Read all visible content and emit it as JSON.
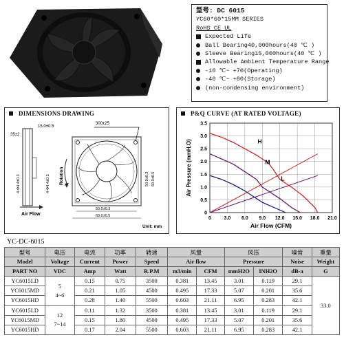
{
  "spec": {
    "model_line": "型号: DC 6015",
    "size_line": "YC60*60*15MM SERIES",
    "cert_line": "RoHS  CE  UL",
    "life_heading": "Expected Life",
    "life_ball": "Ball Bearing40,000hours(40 ℃ )",
    "life_sleeve": "Sleeve Bearing15,000hours(40 ℃ )",
    "temp_heading": "Allowable Ambient Temperature Range",
    "temp_operating": "-10 ℃~ +70(Operating)",
    "temp_storage": "-40 ℃~ +80(Storage)",
    "temp_note": "(non-condensing environment)"
  },
  "dimensions": {
    "title": "DIMENSIONS DRAWING",
    "dim_side": "35±2",
    "dim_thick": "15.0±0.5",
    "dim_hole_v": "4-Φ4.4±0.3",
    "dim_hole_v2": "4-Φ4.4±0.3",
    "dim_lead": "300±25",
    "dim_inner": "50.0±0.3",
    "dim_outer": "60.0±0.5",
    "label_rotation": "Rotation",
    "label_airflow": "Air Flow",
    "label_unit": "Unit: mm"
  },
  "pq": {
    "title": "P&Q CURVE (AT RATED VOLTAGE)"
  },
  "chart_data": {
    "type": "line",
    "title": "P&Q CURVE (AT RATED VOLTAGE)",
    "xlabel": "Air Flow (CFM)",
    "ylabel": "Air Pressure (mmH.O)",
    "xlim": [
      0,
      21
    ],
    "ylim": [
      0,
      3.5
    ],
    "xticks": [
      "0",
      "3.0",
      "6.0",
      "9.0",
      "12.0",
      "15.0",
      "18.0",
      "21.0"
    ],
    "yticks": [
      "0",
      "0.5",
      "1.0",
      "1.5",
      "2.0",
      "2.5",
      "3.0",
      "3.5"
    ],
    "grid": true,
    "series": [
      {
        "name": "H",
        "color": "#c62828",
        "x": [
          0,
          2,
          4,
          6,
          8,
          9,
          10,
          11,
          12,
          13,
          14,
          16,
          18,
          18.5
        ],
        "y": [
          3.1,
          2.95,
          2.75,
          2.5,
          2.25,
          2.1,
          1.95,
          1.65,
          1.3,
          1.15,
          1.0,
          0.65,
          0.2,
          0
        ]
      },
      {
        "name": "M",
        "color": "#6a1b6a",
        "x": [
          0,
          2,
          4,
          6,
          8,
          9,
          10,
          12,
          14,
          15.5
        ],
        "y": [
          2.3,
          2.1,
          1.9,
          1.6,
          1.3,
          1.0,
          0.85,
          0.55,
          0.2,
          0
        ]
      },
      {
        "name": "L",
        "color": "#1a237e",
        "x": [
          0,
          2,
          4,
          6,
          7,
          8,
          9,
          10,
          11,
          12,
          13
        ],
        "y": [
          1.45,
          1.3,
          1.1,
          0.85,
          0.7,
          0.55,
          0.4,
          0.3,
          0.2,
          0.1,
          0
        ]
      }
    ],
    "impedance_lines": [
      {
        "color": "#c62828",
        "x": [
          0,
          18.5
        ],
        "y": [
          0,
          2.3
        ]
      },
      {
        "color": "#6a1b6a",
        "x": [
          0,
          18.5
        ],
        "y": [
          0,
          1.45
        ]
      }
    ]
  },
  "table": {
    "label": "YC-DC-6015",
    "header_cn": [
      "型号",
      "电压",
      "电流",
      "功率",
      "转速",
      "风量",
      "风压",
      "噪音",
      "重量"
    ],
    "header_en": [
      "Model",
      "Voltage",
      "Current",
      "Power",
      "Speed",
      "Air flow",
      "Pressure",
      "Noise",
      "Weight"
    ],
    "units": [
      "PART NO",
      "VDC",
      "Amp",
      "Watt",
      "R.P.M",
      "m3/min",
      "CFM",
      "mmH2O",
      "INH2O",
      "dB-a",
      "G"
    ],
    "rows": [
      [
        "YC6015LD",
        "0.15",
        "0.75",
        "3500",
        "0.381",
        "13.45",
        "3.01",
        "0.119",
        "29.1"
      ],
      [
        "YC6015MD",
        "0.21",
        "1.05",
        "4500",
        "0.495",
        "17.33",
        "5.07",
        "0.201",
        "35.6"
      ],
      [
        "YC6015HD",
        "0.28",
        "1.40",
        "5500",
        "0.603",
        "21.11",
        "6.95",
        "0.283",
        "42.1"
      ],
      [
        "YC6015LD",
        "0.11",
        "1.32",
        "3500",
        "0.381",
        "13.45",
        "3.01",
        "0.119",
        "29.1"
      ],
      [
        "YC6015MD",
        "0.15",
        "1.80",
        "4500",
        "0.495",
        "17.33",
        "5.07",
        "0.201",
        "35.6"
      ],
      [
        "YC6015HD",
        "0.17",
        "2.04",
        "5500",
        "0.603",
        "21.11",
        "6.95",
        "0.283",
        "42.1"
      ]
    ],
    "voltage_group1": "5\n4~6",
    "voltage_group2": "12\n7~14",
    "weight": "33.0"
  }
}
